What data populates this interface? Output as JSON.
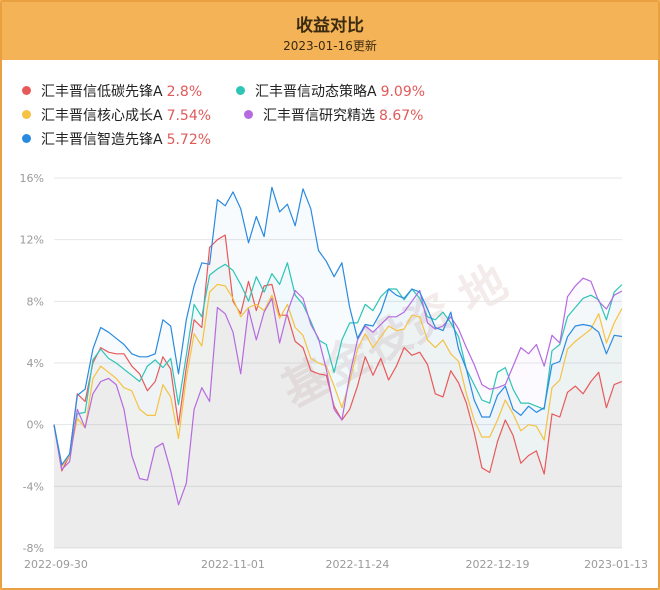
{
  "header": {
    "title": "收益对比",
    "subtitle": "2023-01-16更新"
  },
  "watermark": "基金投资 地",
  "legend": [
    {
      "name": "汇丰晋信低碳先锋A",
      "value": "2.8%",
      "color": "#e85a5a"
    },
    {
      "name": "汇丰晋信动态策略A",
      "value": "9.09%",
      "color": "#2ec4b6"
    },
    {
      "name": "汇丰晋信核心成长A",
      "value": "7.54%",
      "color": "#f5c242"
    },
    {
      "name": "汇丰晋信研究精选",
      "value": "8.67%",
      "color": "#b56ae0"
    },
    {
      "name": "汇丰晋信智造先锋A",
      "value": "5.72%",
      "color": "#2a8ae0"
    }
  ],
  "chart_data": {
    "type": "line",
    "ylim": [
      -8,
      16
    ],
    "yticks": [
      "16%",
      "12%",
      "8%",
      "4%",
      "0%",
      "-4%",
      "-8%"
    ],
    "xticks": [
      "2022-09-30",
      "2022-11-01",
      "2022-11-24",
      "2022-12-19",
      "2023-01-13"
    ],
    "grid": true,
    "legend_position": "top",
    "series": [
      {
        "name": "汇丰晋信低碳先锋A",
        "color": "#e85a5a",
        "values": [
          0,
          -3.0,
          -2.0,
          2.0,
          1.5,
          4.0,
          5.0,
          4.7,
          4.6,
          4.6,
          3.8,
          3.3,
          2.2,
          2.8,
          4.4,
          3.6,
          0.0,
          3.7,
          6.8,
          6.3,
          11.5,
          12.0,
          12.3,
          8.0,
          7.2,
          9.3,
          7.4,
          9.0,
          9.1,
          7.1,
          7.1,
          5.4,
          5.0,
          3.5,
          3.3,
          3.2,
          1.2,
          0.3,
          1.0,
          2.5,
          4.4,
          3.2,
          4.3,
          2.9,
          3.8,
          5.0,
          4.5,
          4.7,
          3.9,
          2.0,
          1.8,
          3.5,
          2.7,
          1.4,
          -0.5,
          -2.8,
          -3.1,
          -1.1,
          0.3,
          -0.7,
          -2.5,
          -2.0,
          -1.7,
          -3.2,
          0.7,
          0.5,
          2.1,
          2.5,
          2.0,
          2.8,
          3.4,
          1.1,
          2.6,
          2.8
        ]
      },
      {
        "name": "汇丰晋信动态策略A",
        "color": "#2ec4b6",
        "values": [
          0,
          -2.7,
          -2.0,
          0.7,
          0.8,
          4.2,
          4.9,
          4.3,
          4.0,
          3.6,
          3.2,
          2.8,
          3.8,
          4.2,
          3.7,
          4.3,
          1.3,
          4.5,
          7.8,
          7.0,
          9.7,
          10.1,
          10.4,
          10.0,
          9.1,
          8.0,
          9.6,
          8.6,
          9.8,
          9.1,
          10.5,
          8.4,
          7.8,
          6.7,
          5.5,
          5.2,
          3.4,
          5.5,
          6.6,
          6.6,
          7.8,
          7.4,
          8.3,
          8.8,
          8.8,
          8.1,
          8.8,
          8.2,
          7.0,
          6.8,
          7.3,
          6.6,
          5.7,
          3.6,
          2.6,
          1.6,
          1.4,
          3.4,
          3.7,
          2.3,
          1.4,
          1.4,
          1.2,
          1.0,
          4.8,
          5.2,
          7.0,
          7.6,
          8.2,
          8.4,
          8.1,
          6.8,
          8.6,
          9.09
        ]
      },
      {
        "name": "汇丰晋信核心成长A",
        "color": "#f5c242",
        "values": [
          0,
          -2.7,
          -2.0,
          0.4,
          -0.2,
          3.0,
          3.8,
          3.4,
          3.0,
          2.4,
          2.2,
          1.0,
          0.6,
          0.6,
          2.6,
          1.8,
          -0.9,
          3.0,
          5.9,
          5.1,
          8.6,
          9.1,
          9.0,
          8.2,
          7.0,
          7.6,
          7.8,
          7.4,
          8.4,
          6.9,
          7.8,
          6.3,
          5.8,
          4.3,
          4.0,
          3.8,
          2.5,
          1.1,
          2.8,
          4.9,
          5.9,
          5.0,
          5.7,
          6.4,
          6.1,
          6.2,
          7.1,
          7.0,
          5.5,
          5.0,
          5.5,
          4.6,
          4.1,
          2.0,
          0.3,
          -0.8,
          -0.8,
          0.3,
          1.6,
          0.7,
          -0.4,
          0.0,
          -0.1,
          -1.0,
          2.4,
          2.9,
          4.9,
          5.4,
          5.8,
          6.2,
          7.2,
          5.3,
          6.6,
          7.54
        ]
      },
      {
        "name": "汇丰晋信研究精选",
        "color": "#b56ae0",
        "values": [
          0,
          -2.9,
          -2.4,
          1.0,
          -0.2,
          2.0,
          2.8,
          3.0,
          2.6,
          1.0,
          -2.0,
          -3.5,
          -3.6,
          -1.5,
          -1.2,
          -3.0,
          -5.2,
          -3.8,
          1.0,
          2.4,
          1.5,
          7.6,
          7.2,
          6.0,
          3.3,
          7.5,
          5.5,
          7.3,
          8.2,
          5.3,
          7.3,
          8.7,
          8.2,
          6.5,
          5.6,
          3.6,
          1.0,
          0.3,
          3.2,
          5.5,
          6.4,
          6.0,
          6.5,
          7.0,
          7.0,
          7.3,
          8.0,
          8.7,
          6.6,
          6.2,
          6.4,
          7.0,
          6.2,
          5.0,
          3.9,
          2.6,
          2.3,
          2.4,
          2.6,
          3.8,
          5.0,
          4.6,
          5.2,
          3.8,
          5.8,
          5.3,
          8.3,
          9.0,
          9.5,
          9.3,
          8.0,
          7.5,
          8.4,
          8.67
        ]
      },
      {
        "name": "汇丰晋信智造先锋A",
        "color": "#2a8ae0",
        "values": [
          0,
          -2.6,
          -1.9,
          1.9,
          2.3,
          4.9,
          6.3,
          6.0,
          5.6,
          5.2,
          4.6,
          4.4,
          4.4,
          4.6,
          6.8,
          6.4,
          3.3,
          6.8,
          9.0,
          10.5,
          10.4,
          14.6,
          14.2,
          15.1,
          14.0,
          11.8,
          13.5,
          12.2,
          15.4,
          13.8,
          14.3,
          12.9,
          15.3,
          14.0,
          11.3,
          10.6,
          9.6,
          10.5,
          7.6,
          5.6,
          6.5,
          6.4,
          7.3,
          8.8,
          8.4,
          8.2,
          8.8,
          8.6,
          7.5,
          6.3,
          6.1,
          7.3,
          4.9,
          3.6,
          1.6,
          0.5,
          0.5,
          1.9,
          2.5,
          1.0,
          0.6,
          1.2,
          0.8,
          1.1,
          3.9,
          4.1,
          5.7,
          6.4,
          6.5,
          6.4,
          6.0,
          4.6,
          5.8,
          5.72
        ]
      }
    ]
  }
}
